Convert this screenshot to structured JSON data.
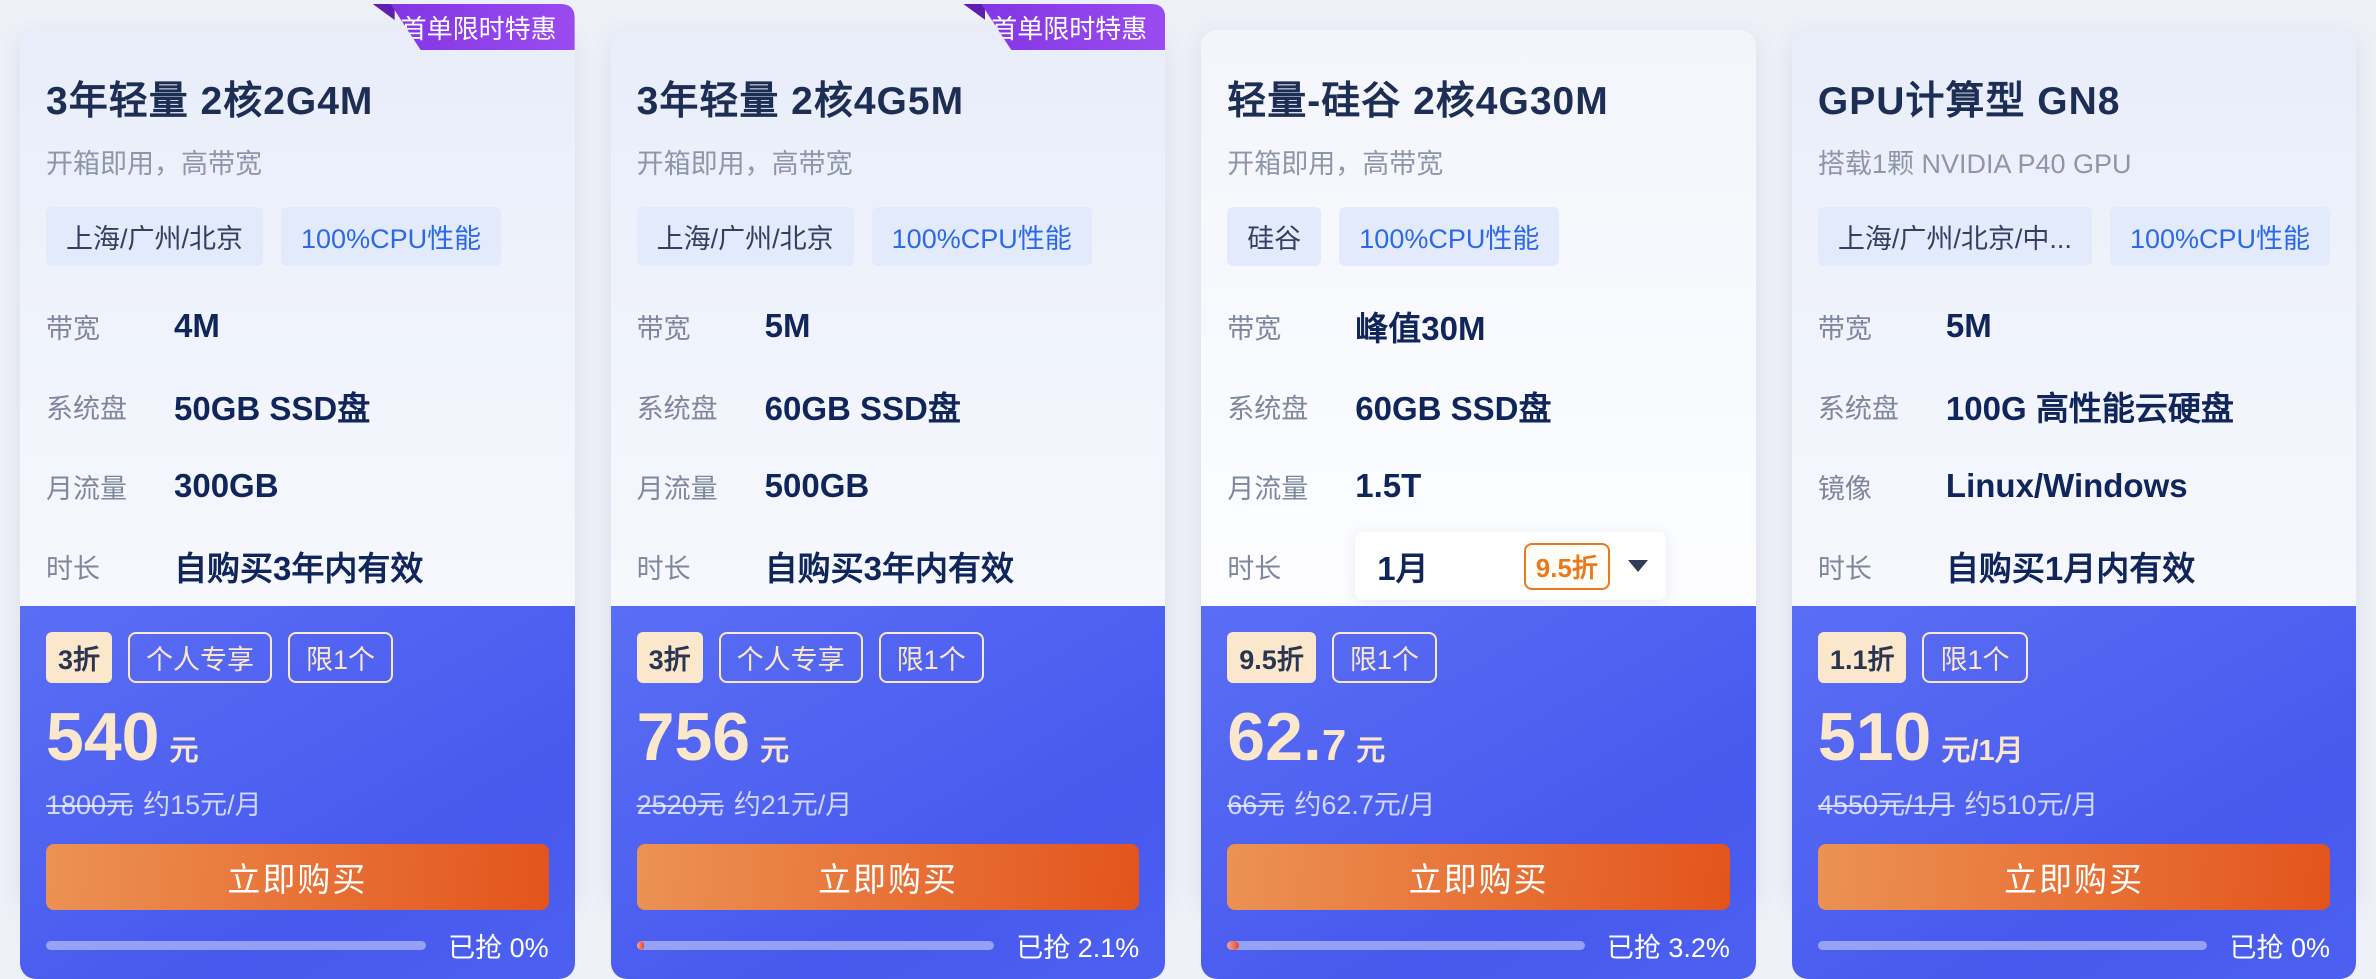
{
  "colors": {
    "page_bg": "#eef0f7",
    "ribbon_purple": "#8a3ce8",
    "footer_blue": "#4c60f0",
    "cream_accent": "#fbe8cc",
    "button_orange": "#e3541c",
    "cpu_tag_blue": "#2c69e6",
    "discount_orange": "#e87a1d",
    "title_navy": "#1d2e55"
  },
  "cards": [
    {
      "ribbon": "首单限时特惠",
      "title": "3年轻量 2核2G4M",
      "subtitle": "开箱即用，高带宽",
      "tags": [
        {
          "label": "上海/广州/北京"
        },
        {
          "label": "100%CPU性能"
        }
      ],
      "specs": [
        {
          "label": "带宽",
          "value": "4M"
        },
        {
          "label": "系统盘",
          "value": "50GB SSD盘"
        },
        {
          "label": "月流量",
          "value": "300GB"
        },
        {
          "label": "时长",
          "value": "自购买3年内有效"
        }
      ],
      "deal": {
        "badges": [
          {
            "label": "3折",
            "style": "fill"
          },
          {
            "label": "个人专享",
            "style": "outline"
          },
          {
            "label": "限1个",
            "style": "outline"
          }
        ],
        "price_main": "540",
        "price_sub": "",
        "price_unit": "元",
        "original_price": "1800元",
        "approx": "约15元/月",
        "buy_label": "立即购买",
        "sold_label": "已抢 0%",
        "sold_percent": 0
      }
    },
    {
      "ribbon": "首单限时特惠",
      "title": "3年轻量 2核4G5M",
      "subtitle": "开箱即用，高带宽",
      "tags": [
        {
          "label": "上海/广州/北京"
        },
        {
          "label": "100%CPU性能"
        }
      ],
      "specs": [
        {
          "label": "带宽",
          "value": "5M"
        },
        {
          "label": "系统盘",
          "value": "60GB SSD盘"
        },
        {
          "label": "月流量",
          "value": "500GB"
        },
        {
          "label": "时长",
          "value": "自购买3年内有效"
        }
      ],
      "deal": {
        "badges": [
          {
            "label": "3折",
            "style": "fill"
          },
          {
            "label": "个人专享",
            "style": "outline"
          },
          {
            "label": "限1个",
            "style": "outline"
          }
        ],
        "price_main": "756",
        "price_sub": "",
        "price_unit": "元",
        "original_price": "2520元",
        "approx": "约21元/月",
        "buy_label": "立即购买",
        "sold_label": "已抢 2.1%",
        "sold_percent": 2.1
      }
    },
    {
      "ribbon": null,
      "title": "轻量-硅谷 2核4G30M",
      "subtitle": "开箱即用，高带宽",
      "tags": [
        {
          "label": "硅谷"
        },
        {
          "label": "100%CPU性能"
        }
      ],
      "specs": [
        {
          "label": "带宽",
          "value": "峰值30M"
        },
        {
          "label": "系统盘",
          "value": "60GB SSD盘"
        },
        {
          "label": "月流量",
          "value": "1.5T"
        }
      ],
      "duration_row_label": "时长",
      "duration_select": {
        "value": "1月",
        "discount": "9.5折"
      },
      "deal": {
        "badges": [
          {
            "label": "9.5折",
            "style": "fill"
          },
          {
            "label": "限1个",
            "style": "outline"
          }
        ],
        "price_main": "62.",
        "price_sub": "7",
        "price_unit": "元",
        "original_price": "66元",
        "approx": "约62.7元/月",
        "buy_label": "立即购买",
        "sold_label": "已抢 3.2%",
        "sold_percent": 3.2
      }
    },
    {
      "ribbon": null,
      "title": "GPU计算型 GN8",
      "subtitle": "搭载1颗 NVIDIA P40 GPU",
      "tags": [
        {
          "label": "上海/广州/北京/中..."
        },
        {
          "label": "100%CPU性能"
        }
      ],
      "specs": [
        {
          "label": "带宽",
          "value": "5M"
        },
        {
          "label": "系统盘",
          "value": "100G 高性能云硬盘"
        },
        {
          "label": "镜像",
          "value": "Linux/Windows"
        },
        {
          "label": "时长",
          "value": "自购买1月内有效"
        }
      ],
      "deal": {
        "badges": [
          {
            "label": "1.1折",
            "style": "fill"
          },
          {
            "label": "限1个",
            "style": "outline"
          }
        ],
        "price_main": "510",
        "price_sub": "",
        "price_unit": "元/1月",
        "original_price": "4550元/1月",
        "approx": "约510元/月",
        "buy_label": "立即购买",
        "sold_label": "已抢 0%",
        "sold_percent": 0
      }
    }
  ]
}
